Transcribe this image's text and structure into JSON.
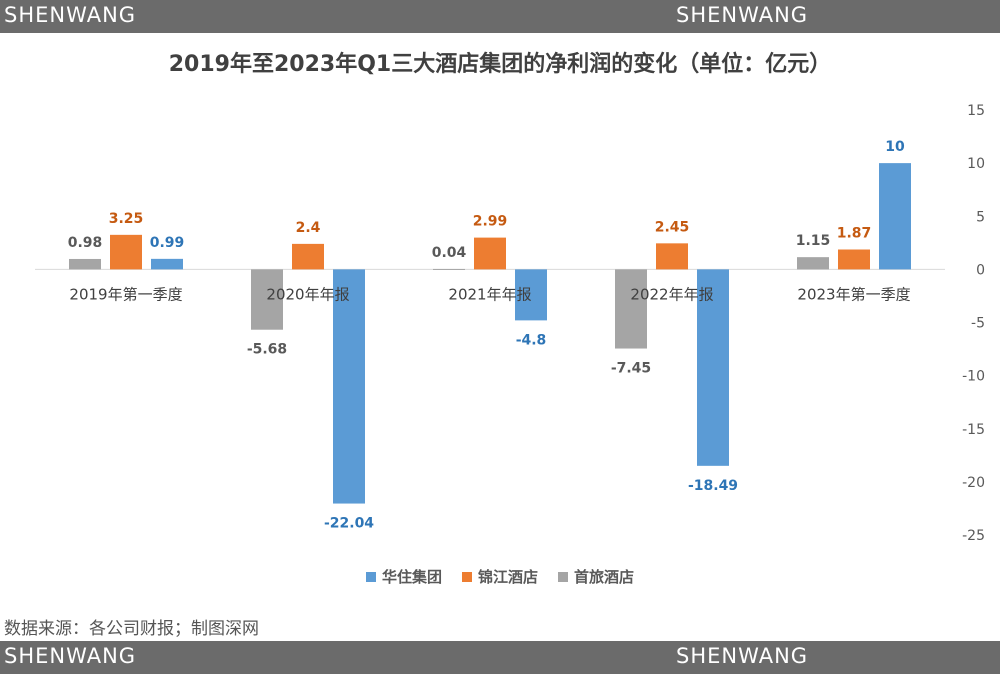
{
  "banner": {
    "left": "SHENWANG",
    "right": "SHENWANG"
  },
  "source": "数据来源：各公司财报；制图深网",
  "colors": {
    "huazhu": "#5b9bd5",
    "jinjiang": "#ed7d31",
    "shoulv": "#a5a5a5",
    "banner": "#6b6b6b"
  },
  "chart_data": {
    "type": "bar",
    "title": "2019年至2023年Q1三大酒店集团的净利润的变化（单位：亿元）",
    "categories": [
      "2019年第一季度",
      "2020年年报",
      "2021年年报",
      "2022年年报",
      "2023年第一季度"
    ],
    "series": [
      {
        "name": "首旅酒店",
        "values": [
          0.98,
          -5.68,
          0.04,
          -7.45,
          1.15
        ],
        "color": "#a5a5a5"
      },
      {
        "name": "锦江酒店",
        "values": [
          3.25,
          2.4,
          2.99,
          2.45,
          1.87
        ],
        "color": "#ed7d31"
      },
      {
        "name": "华住集团",
        "values": [
          0.99,
          -22.04,
          -4.8,
          -18.49,
          10
        ],
        "color": "#5b9bd5"
      }
    ],
    "legend_order": [
      "华住集团",
      "锦江酒店",
      "首旅酒店"
    ],
    "y_axis": {
      "position": "right",
      "ylim": [
        -25,
        15
      ],
      "ticks": [
        15,
        10,
        5,
        0,
        -5,
        -10,
        -15,
        -20,
        -25
      ]
    },
    "grid": false,
    "legend_position": "bottom"
  }
}
